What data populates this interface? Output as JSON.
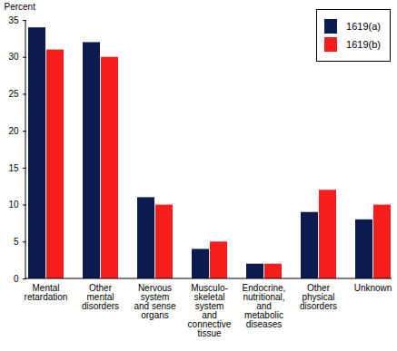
{
  "chart_data": {
    "type": "bar",
    "y_label": "Percent",
    "categories": [
      "Mental\nretardation",
      "Other\nmental\ndisorders",
      "Nervous\nsystem\nand sense\norgans",
      "Musculo-\nskeletal\nsystem\nand\nconnective\ntissue",
      "Endocrine,\nnutritional,\nand\nmetabolic\ndiseases",
      "Other\nphysical\ndisorders",
      "Unknown"
    ],
    "series": [
      {
        "name": "1619(a)",
        "color": "#0b1b4d",
        "values": [
          34,
          32,
          11,
          4,
          2,
          9,
          8
        ]
      },
      {
        "name": "1619(b)",
        "color": "#f81e1e",
        "values": [
          31,
          30,
          10,
          5,
          2,
          12,
          10
        ]
      }
    ],
    "ylim": [
      0,
      35
    ],
    "yticks": [
      0,
      5,
      10,
      15,
      20,
      25,
      30,
      35
    ],
    "grid": false,
    "legend": "top-right"
  }
}
